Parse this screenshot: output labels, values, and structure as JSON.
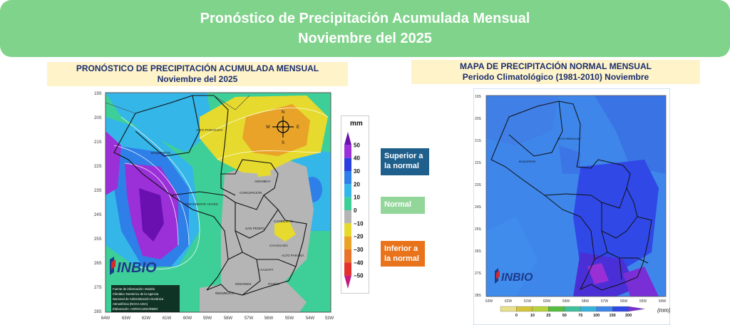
{
  "header": {
    "title_line1": "Pronóstico de Precipitación Acumulada Mensual",
    "title_line2": "Noviembre  del 2025"
  },
  "forecast_panel": {
    "title": "PRONÓSTICO DE PRECIPITACIÓN  ACUMULADA MENSUAL",
    "subtitle": "Noviembre del 2025",
    "lat_labels": [
      "19S",
      "20S",
      "21S",
      "22S",
      "23S",
      "24S",
      "25S",
      "26S",
      "27S",
      "28S"
    ],
    "lon_labels": [
      "64W",
      "63W",
      "62W",
      "61W",
      "60W",
      "59W",
      "58W",
      "57W",
      "56W",
      "55W",
      "54W",
      "53W"
    ],
    "region_labels": [
      "ALTO PARAGUAY",
      "BOQUERÓN",
      "PRESIDENTE HAYES",
      "CONCEPCIÓN",
      "AMAMBAY",
      "SAN PEDRO",
      "CANINDEYÚ",
      "CAAGUAZÚ",
      "ALTO PARANÁ",
      "CAAZAPÁ",
      "ITAPÚA",
      "MISIONES",
      "ÑEEMBUCÚ"
    ],
    "compass": {
      "n": "N",
      "s": "S",
      "e": "E",
      "w": "W"
    },
    "logo_text": "INBIO",
    "credits": [
      "Fuente de información: Modelo",
      "Climático Numérico de la Agencia",
      "Nacional de Administración Oceánica",
      "Atmosférica (NOAA-USA)",
      "Elaboración: AGROCLIMA/INBIO"
    ]
  },
  "legend": {
    "unit": "mm",
    "ticks": [
      "50",
      "40",
      "30",
      "20",
      "10",
      "0",
      "−10",
      "−20",
      "−30",
      "−40",
      "−50"
    ],
    "colors": [
      "#6a0fb0",
      "#9b30d9",
      "#2b3ee0",
      "#2f7fe8",
      "#35b6e8",
      "#3ecf98",
      "#b5b5b5",
      "#e6da2e",
      "#e8a328",
      "#e8742b",
      "#e3322b",
      "#c51b7d"
    ]
  },
  "categories": {
    "above": "Superior a la normal",
    "normal": "Normal",
    "below": "Inferior a la normal",
    "above_color": "#1f5f8b",
    "normal_color": "#92d69a",
    "below_color": "#e8731b"
  },
  "normal_panel": {
    "title": "MAPA DE PRECIPITACIÓN  NORMAL MENSUAL",
    "subtitle": "Periodo Climatológico (1981-2010)  Noviembre",
    "lat_labels": [
      "19S",
      "20S",
      "21S",
      "22S",
      "23S",
      "24S",
      "25S",
      "26S",
      "27S",
      "28S"
    ],
    "lon_labels": [
      "63W",
      "62W",
      "61W",
      "60W",
      "59W",
      "58W",
      "57W",
      "56W",
      "55W",
      "54W"
    ],
    "region_labels": [
      "ALTO PARAGUAY",
      "BOQUERÓN"
    ],
    "logo_text": "INBIO",
    "colorbar_ticks": [
      "0",
      "10",
      "25",
      "50",
      "75",
      "100",
      "150",
      "200"
    ],
    "colorbar_unit": "(mm)",
    "colorbar_colors": [
      "#e8e18a",
      "#d4c53a",
      "#b7d23b",
      "#57bd3f",
      "#3fbf9c",
      "#39b3dc",
      "#3e86ea",
      "#3048e6",
      "#7a2fd6"
    ]
  }
}
